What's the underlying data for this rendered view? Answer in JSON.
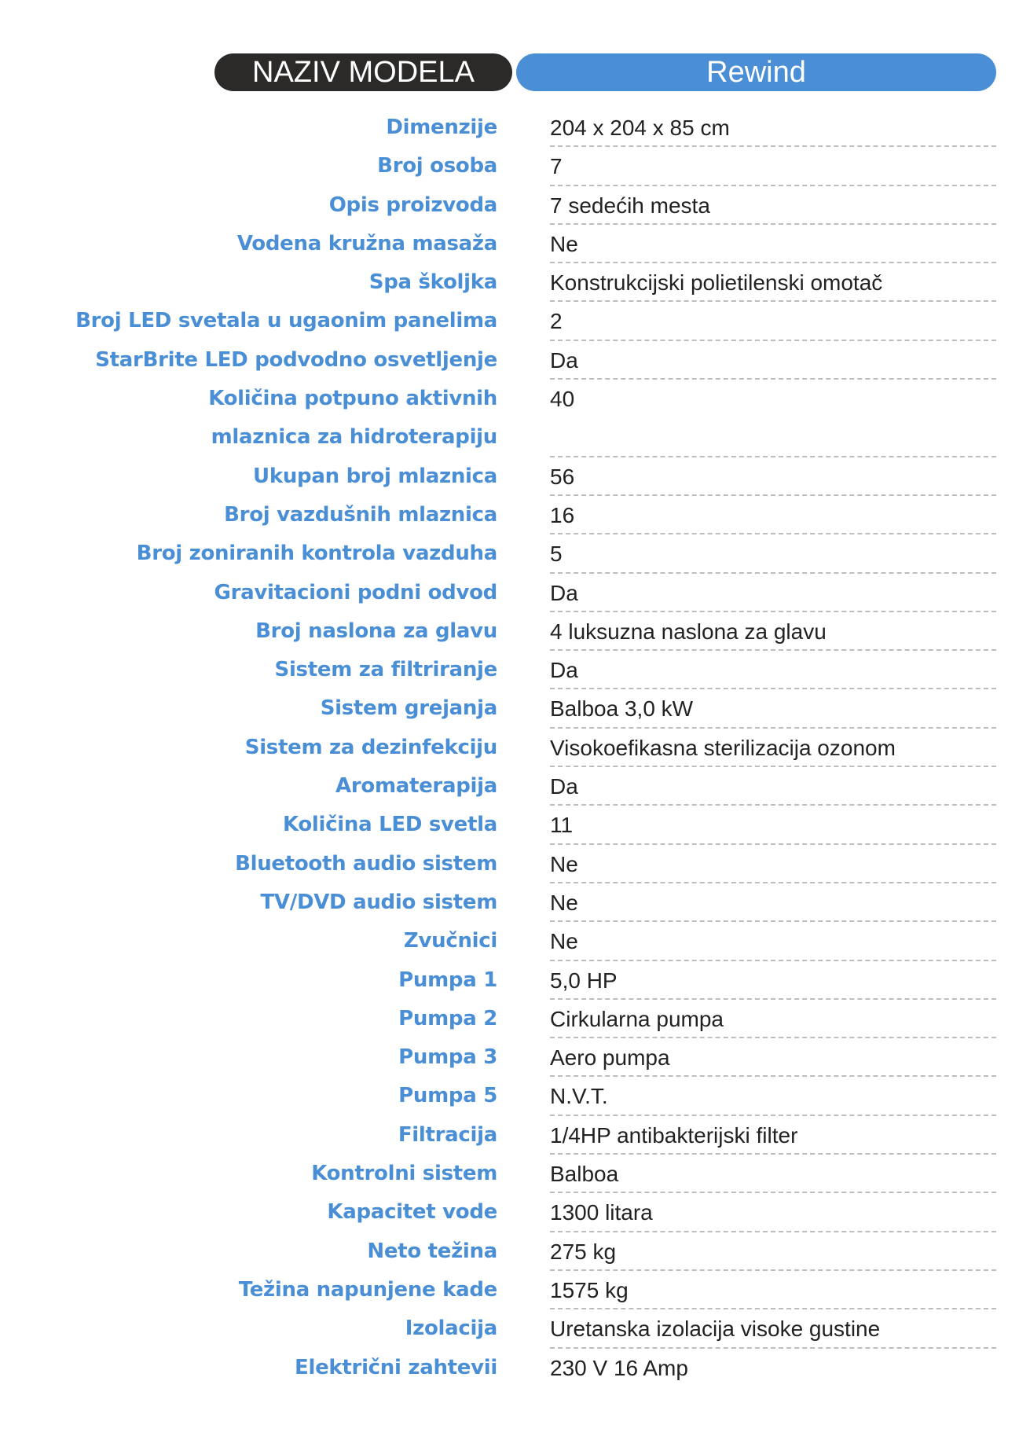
{
  "header": {
    "left_label": "NAZIV MODELA",
    "model_name": "Rewind"
  },
  "colors": {
    "accent": "#4a8fd6",
    "dark": "#2b2a29"
  },
  "specs": [
    {
      "label": "Dimenzije",
      "value": "204 x 204 x 85 cm"
    },
    {
      "label": "Broj osoba",
      "value": "7"
    },
    {
      "label": "Opis proizvoda",
      "value": "7 sedećih mesta"
    },
    {
      "label": "Vodena kružna masaža",
      "value": "Ne"
    },
    {
      "label": "Spa školjka",
      "value": "Konstrukcijski polietilenski omotač"
    },
    {
      "label": "Broj LED svetala u ugaonim panelima",
      "value": "2"
    },
    {
      "label": "StarBrite LED podvodno osvetljenje",
      "value": "Da"
    },
    {
      "label": "Količina potpuno aktivnih\nmlaznica za hidroterapiju",
      "value": "40"
    },
    {
      "label": "Ukupan broj mlaznica",
      "value": "56"
    },
    {
      "label": "Broj vazdušnih mlaznica",
      "value": "16"
    },
    {
      "label": "Broj zoniranih kontrola vazduha",
      "value": "5"
    },
    {
      "label": "Gravitacioni podni odvod",
      "value": "Da"
    },
    {
      "label": "Broj naslona za glavu",
      "value": "4 luksuzna naslona za glavu"
    },
    {
      "label": "Sistem za filtriranje",
      "value": "Da"
    },
    {
      "label": "Sistem grejanja",
      "value": "Balboa 3,0 kW"
    },
    {
      "label": "Sistem za dezinfekciju",
      "value": "Visokoefikasna sterilizacija ozonom"
    },
    {
      "label": "Aromaterapija",
      "value": "Da"
    },
    {
      "label": "Količina LED svetla",
      "value": "11"
    },
    {
      "label": "Bluetooth audio sistem",
      "value": "Ne"
    },
    {
      "label": "TV/DVD audio sistem",
      "value": "Ne"
    },
    {
      "label": "Zvučnici",
      "value": "Ne"
    },
    {
      "label": "Pumpa 1",
      "value": "5,0 HP"
    },
    {
      "label": "Pumpa 2",
      "value": "Cirkularna pumpa"
    },
    {
      "label": "Pumpa 3",
      "value": "Aero pumpa"
    },
    {
      "label": "Pumpa 5",
      "value": "N.V.T."
    },
    {
      "label": "Filtracija",
      "value": "1/4HP antibakterijski filter"
    },
    {
      "label": "Kontrolni sistem",
      "value": "Balboa"
    },
    {
      "label": "Kapacitet vode",
      "value": "1300 litara"
    },
    {
      "label": "Neto težina",
      "value": "275 kg"
    },
    {
      "label": "Težina napunjene kade",
      "value": "1575 kg"
    },
    {
      "label": "Izolacija",
      "value": "Uretanska izolacija visoke gustine"
    },
    {
      "label": "Električni zahtevii",
      "value": "230 V 16 Amp"
    }
  ]
}
